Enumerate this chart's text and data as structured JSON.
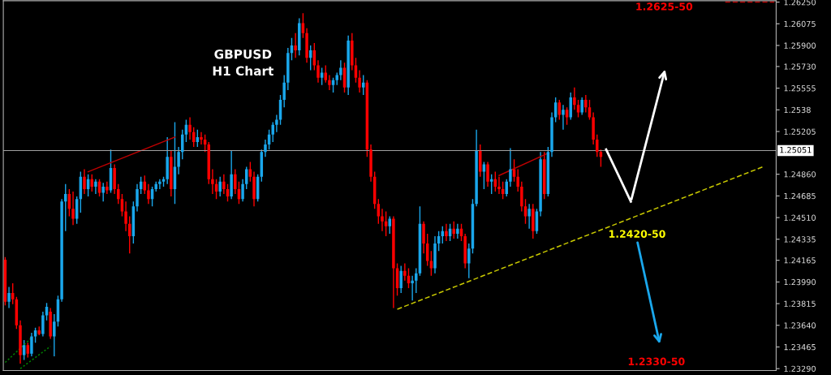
{
  "chart_data": {
    "type": "candlestick",
    "title": "GBPUSD\nH1 Chart",
    "categories": [
      null,
      null,
      null,
      null,
      null,
      null,
      null,
      null,
      null,
      null,
      null,
      null,
      null,
      null,
      null,
      null,
      null,
      null,
      null,
      null,
      null,
      null,
      null,
      null,
      null,
      null,
      null,
      null,
      null,
      null,
      null,
      null,
      null,
      null,
      null,
      null,
      null,
      null,
      null,
      null,
      null,
      null,
      null,
      null,
      null,
      null,
      null,
      null,
      null,
      null,
      null,
      null,
      null,
      null,
      null,
      null,
      null,
      null,
      null,
      null,
      null,
      null,
      null,
      null,
      null,
      null,
      null,
      null,
      null,
      null,
      null,
      null,
      null,
      null,
      null,
      null,
      null,
      null,
      null,
      null,
      null,
      null,
      null,
      null,
      null,
      null,
      null,
      null,
      null,
      null,
      null,
      null,
      null,
      null,
      null,
      null,
      null,
      null,
      null,
      null,
      null,
      null,
      null,
      null,
      null,
      null,
      null,
      null,
      null,
      null,
      null,
      null,
      null,
      null,
      null,
      null,
      null,
      null,
      null,
      null,
      null,
      null,
      null,
      null,
      null,
      null,
      null,
      null,
      null,
      null,
      null,
      null,
      null,
      null,
      null,
      null,
      null,
      null,
      null,
      null,
      null,
      null,
      null,
      null,
      null,
      null,
      null,
      null,
      null,
      null,
      null,
      null,
      null,
      null,
      null,
      null,
      null,
      null,
      null,
      null,
      null,
      null,
      null,
      null,
      null,
      null,
      null,
      null,
      null,
      null,
      null,
      null,
      null,
      null,
      null,
      null,
      null,
      null,
      null,
      null,
      null,
      null,
      null,
      null,
      null,
      null,
      null,
      null,
      null,
      null,
      null,
      null,
      null,
      null,
      null,
      null,
      null,
      null,
      null,
      null,
      null,
      null,
      null,
      null,
      null
    ],
    "ohlc": [
      [
        1.2417,
        1.2419,
        1.238,
        1.2383
      ],
      [
        1.2383,
        1.2395,
        1.2378,
        1.239
      ],
      [
        1.239,
        1.2398,
        1.2381,
        1.2385
      ],
      [
        1.2385,
        1.2387,
        1.2361,
        1.2364
      ],
      [
        1.2364,
        1.2368,
        1.2333,
        1.234
      ],
      [
        1.234,
        1.2352,
        1.2336,
        1.2348
      ],
      [
        1.2348,
        1.235,
        1.2338,
        1.2341
      ],
      [
        1.2341,
        1.2358,
        1.2339,
        1.2355
      ],
      [
        1.2355,
        1.2362,
        1.235,
        1.236
      ],
      [
        1.236,
        1.2363,
        1.2356,
        1.2357
      ],
      [
        1.2357,
        1.2375,
        1.2355,
        1.2372
      ],
      [
        1.2372,
        1.2382,
        1.2368,
        1.2379
      ],
      [
        1.2375,
        1.2378,
        1.2353,
        1.2355
      ],
      [
        1.2355,
        1.2373,
        1.2339,
        1.2367
      ],
      [
        1.2367,
        1.2388,
        1.2363,
        1.2385
      ],
      [
        1.2385,
        1.2466,
        1.2383,
        1.2464
      ],
      [
        1.2464,
        1.2478,
        1.244,
        1.247
      ],
      [
        1.247,
        1.2474,
        1.2452,
        1.2458
      ],
      [
        1.2458,
        1.2472,
        1.2445,
        1.245
      ],
      [
        1.245,
        1.2468,
        1.2446,
        1.2466
      ],
      [
        1.2466,
        1.2488,
        1.2455,
        1.2484
      ],
      [
        1.2484,
        1.249,
        1.247,
        1.2474
      ],
      [
        1.2474,
        1.2486,
        1.2468,
        1.2482
      ],
      [
        1.2482,
        1.2486,
        1.2472,
        1.2476
      ],
      [
        1.2476,
        1.2482,
        1.247,
        1.248
      ],
      [
        1.248,
        1.2482,
        1.2468,
        1.2471
      ],
      [
        1.2471,
        1.2479,
        1.2464,
        1.2476
      ],
      [
        1.2476,
        1.248,
        1.247,
        1.2473
      ],
      [
        1.2473,
        1.2506,
        1.2471,
        1.2491
      ],
      [
        1.2491,
        1.2494,
        1.247,
        1.2474
      ],
      [
        1.2474,
        1.2478,
        1.2462,
        1.2466
      ],
      [
        1.2466,
        1.247,
        1.2452,
        1.2456
      ],
      [
        1.2456,
        1.2464,
        1.244,
        1.2446
      ],
      [
        1.2446,
        1.2452,
        1.2422,
        1.2436
      ],
      [
        1.2436,
        1.2464,
        1.243,
        1.246
      ],
      [
        1.246,
        1.2478,
        1.2456,
        1.2474
      ],
      [
        1.2474,
        1.2484,
        1.247,
        1.248
      ],
      [
        1.248,
        1.2485,
        1.247,
        1.2473
      ],
      [
        1.2473,
        1.2478,
        1.2462,
        1.2466
      ],
      [
        1.2466,
        1.2476,
        1.246,
        1.2474
      ],
      [
        1.2474,
        1.248,
        1.2472,
        1.2478
      ],
      [
        1.2478,
        1.2482,
        1.2474,
        1.248
      ],
      [
        1.248,
        1.2484,
        1.2476,
        1.2482
      ],
      [
        1.2482,
        1.2516,
        1.2478,
        1.25
      ],
      [
        1.25,
        1.2505,
        1.2468,
        1.2474
      ],
      [
        1.2474,
        1.2528,
        1.2462,
        1.2492
      ],
      [
        1.2492,
        1.2508,
        1.2486,
        1.2504
      ],
      [
        1.2504,
        1.2522,
        1.2498,
        1.2518
      ],
      [
        1.2518,
        1.253,
        1.2512,
        1.2526
      ],
      [
        1.2526,
        1.2532,
        1.2514,
        1.252
      ],
      [
        1.252,
        1.2524,
        1.2508,
        1.2512
      ],
      [
        1.2512,
        1.2522,
        1.2508,
        1.2516
      ],
      [
        1.2516,
        1.252,
        1.251,
        1.2514
      ],
      [
        1.2514,
        1.2518,
        1.2504,
        1.251
      ],
      [
        1.251,
        1.2512,
        1.2478,
        1.2482
      ],
      [
        1.2482,
        1.249,
        1.247,
        1.2478
      ],
      [
        1.2478,
        1.2482,
        1.2466,
        1.2472
      ],
      [
        1.2472,
        1.2484,
        1.2468,
        1.248
      ],
      [
        1.248,
        1.2486,
        1.247,
        1.2474
      ],
      [
        1.2474,
        1.2478,
        1.2464,
        1.2468
      ],
      [
        1.2468,
        1.2505,
        1.2466,
        1.2486
      ],
      [
        1.2486,
        1.249,
        1.247,
        1.2474
      ],
      [
        1.2474,
        1.248,
        1.2462,
        1.2466
      ],
      [
        1.2466,
        1.2482,
        1.2464,
        1.2478
      ],
      [
        1.2478,
        1.2492,
        1.2474,
        1.249
      ],
      [
        1.249,
        1.2496,
        1.248,
        1.2484
      ],
      [
        1.2484,
        1.2488,
        1.246,
        1.2466
      ],
      [
        1.2466,
        1.2486,
        1.2464,
        1.2484
      ],
      [
        1.2484,
        1.2506,
        1.248,
        1.2504
      ],
      [
        1.2504,
        1.2514,
        1.25,
        1.251
      ],
      [
        1.251,
        1.2522,
        1.2506,
        1.2518
      ],
      [
        1.2518,
        1.2528,
        1.2512,
        1.2526
      ],
      [
        1.2526,
        1.2534,
        1.252,
        1.253
      ],
      [
        1.253,
        1.255,
        1.2526,
        1.2546
      ],
      [
        1.2546,
        1.2566,
        1.254,
        1.256
      ],
      [
        1.256,
        1.2588,
        1.2554,
        1.2584
      ],
      [
        1.2584,
        1.2596,
        1.2578,
        1.259
      ],
      [
        1.259,
        1.26,
        1.258,
        1.2586
      ],
      [
        1.2586,
        1.2612,
        1.2582,
        1.2608
      ],
      [
        1.2608,
        1.2616,
        1.2596,
        1.26
      ],
      [
        1.26,
        1.2604,
        1.2576,
        1.258
      ],
      [
        1.258,
        1.259,
        1.257,
        1.2586
      ],
      [
        1.2586,
        1.2592,
        1.257,
        1.2574
      ],
      [
        1.2574,
        1.2578,
        1.256,
        1.2564
      ],
      [
        1.2564,
        1.2572,
        1.2558,
        1.2568
      ],
      [
        1.2568,
        1.2574,
        1.256,
        1.2562
      ],
      [
        1.2562,
        1.2566,
        1.2554,
        1.2558
      ],
      [
        1.2558,
        1.2564,
        1.2552,
        1.2562
      ],
      [
        1.2562,
        1.2568,
        1.2558,
        1.2566
      ],
      [
        1.2566,
        1.2578,
        1.2562,
        1.2572
      ],
      [
        1.2572,
        1.2576,
        1.2552,
        1.2556
      ],
      [
        1.2556,
        1.2598,
        1.255,
        1.2594
      ],
      [
        1.2594,
        1.26,
        1.257,
        1.2574
      ],
      [
        1.2574,
        1.258,
        1.256,
        1.2564
      ],
      [
        1.2564,
        1.257,
        1.2552,
        1.2556
      ],
      [
        1.2556,
        1.2566,
        1.255,
        1.256
      ],
      [
        1.256,
        1.2562,
        1.25,
        1.2506
      ],
      [
        1.2506,
        1.251,
        1.248,
        1.2484
      ],
      [
        1.2484,
        1.2488,
        1.2458,
        1.2462
      ],
      [
        1.2462,
        1.2466,
        1.2446,
        1.2452
      ],
      [
        1.2452,
        1.2458,
        1.244,
        1.2448
      ],
      [
        1.2448,
        1.2456,
        1.2436,
        1.2444
      ],
      [
        1.2444,
        1.2452,
        1.2438,
        1.245
      ],
      [
        1.245,
        1.2452,
        1.2378,
        1.241
      ],
      [
        1.241,
        1.2414,
        1.2388,
        1.2394
      ],
      [
        1.2394,
        1.2412,
        1.239,
        1.2408
      ],
      [
        1.2408,
        1.2414,
        1.24,
        1.2404
      ],
      [
        1.2404,
        1.241,
        1.2394,
        1.2398
      ],
      [
        1.2398,
        1.2404,
        1.2384,
        1.24
      ],
      [
        1.24,
        1.241,
        1.239,
        1.2406
      ],
      [
        1.2406,
        1.246,
        1.2404,
        1.2446
      ],
      [
        1.2446,
        1.2448,
        1.2422,
        1.243
      ],
      [
        1.243,
        1.2438,
        1.2412,
        1.2416
      ],
      [
        1.2416,
        1.2424,
        1.2404,
        1.241
      ],
      [
        1.241,
        1.2436,
        1.2406,
        1.243
      ],
      [
        1.243,
        1.244,
        1.2424,
        1.2436
      ],
      [
        1.2436,
        1.2444,
        1.243,
        1.244
      ],
      [
        1.244,
        1.2446,
        1.2432,
        1.2436
      ],
      [
        1.2436,
        1.2446,
        1.2432,
        1.2442
      ],
      [
        1.2442,
        1.2448,
        1.2434,
        1.2438
      ],
      [
        1.2438,
        1.2446,
        1.2434,
        1.2442
      ],
      [
        1.2442,
        1.2446,
        1.2432,
        1.2436
      ],
      [
        1.2436,
        1.2438,
        1.241,
        1.2414
      ],
      [
        1.2414,
        1.243,
        1.2402,
        1.2426
      ],
      [
        1.2426,
        1.2466,
        1.2422,
        1.2462
      ],
      [
        1.2462,
        1.2522,
        1.246,
        1.2505
      ],
      [
        1.2505,
        1.251,
        1.2484,
        1.2488
      ],
      [
        1.2488,
        1.2496,
        1.2474,
        1.2494
      ],
      [
        1.2494,
        1.2496,
        1.2476,
        1.248
      ],
      [
        1.248,
        1.2486,
        1.247,
        1.2482
      ],
      [
        1.2482,
        1.2488,
        1.2472,
        1.2476
      ],
      [
        1.2476,
        1.2484,
        1.247,
        1.2474
      ],
      [
        1.2474,
        1.248,
        1.2466,
        1.247
      ],
      [
        1.247,
        1.2482,
        1.2468,
        1.248
      ],
      [
        1.248,
        1.2507,
        1.2476,
        1.249
      ],
      [
        1.249,
        1.2498,
        1.248,
        1.2484
      ],
      [
        1.2484,
        1.249,
        1.2472,
        1.2476
      ],
      [
        1.2476,
        1.248,
        1.2456,
        1.246
      ],
      [
        1.246,
        1.2466,
        1.2446,
        1.2452
      ],
      [
        1.2452,
        1.2462,
        1.2442,
        1.2458
      ],
      [
        1.2458,
        1.2462,
        1.2434,
        1.244
      ],
      [
        1.244,
        1.2458,
        1.2438,
        1.2456
      ],
      [
        1.2456,
        1.2504,
        1.2452,
        1.2498
      ],
      [
        1.2498,
        1.2504,
        1.2466,
        1.247
      ],
      [
        1.247,
        1.2508,
        1.2468,
        1.2504
      ],
      [
        1.2504,
        1.2536,
        1.25,
        1.2532
      ],
      [
        1.2532,
        1.2548,
        1.2528,
        1.2544
      ],
      [
        1.2544,
        1.2546,
        1.253,
        1.2534
      ],
      [
        1.2534,
        1.2542,
        1.2522,
        1.2538
      ],
      [
        1.2538,
        1.254,
        1.2526,
        1.2532
      ],
      [
        1.2532,
        1.2552,
        1.253,
        1.2548
      ],
      [
        1.2548,
        1.2556,
        1.2538,
        1.2542
      ],
      [
        1.2542,
        1.2546,
        1.2532,
        1.2536
      ],
      [
        1.2536,
        1.2548,
        1.2534,
        1.2546
      ],
      [
        1.2546,
        1.255,
        1.2536,
        1.254
      ],
      [
        1.254,
        1.2546,
        1.253,
        1.2532
      ],
      [
        1.2532,
        1.2536,
        1.251,
        1.2514
      ],
      [
        1.2514,
        1.2518,
        1.25,
        1.2504
      ],
      [
        1.2504,
        1.2506,
        1.2492,
        1.25
      ],
      null,
      null,
      null,
      null,
      null,
      null,
      null,
      null,
      null,
      null,
      null,
      null,
      null,
      null,
      null,
      null,
      null,
      null,
      null,
      null,
      null,
      null,
      null,
      null,
      null,
      null,
      null,
      null,
      null,
      null,
      null,
      null,
      null,
      null,
      null,
      null,
      null,
      null,
      null,
      null,
      null,
      null,
      null,
      null,
      null,
      null
    ],
    "series": [
      {
        "type": "line",
        "color": "#c8c800",
        "line_style": "dashed",
        "values": [
          null,
          null,
          null,
          null,
          null,
          null,
          null,
          null,
          null,
          null,
          null,
          null,
          null,
          null,
          null,
          null,
          null,
          null,
          null,
          null,
          null,
          null,
          null,
          null,
          null,
          null,
          null,
          null,
          null,
          null,
          null,
          null,
          null,
          null,
          null,
          null,
          null,
          null,
          null,
          null,
          null,
          null,
          null,
          null,
          null,
          null,
          null,
          null,
          null,
          null,
          null,
          null,
          null,
          null,
          null,
          null,
          null,
          null,
          null,
          null,
          null,
          null,
          null,
          null,
          null,
          null,
          null,
          null,
          null,
          null,
          null,
          null,
          null,
          null,
          null,
          null,
          null,
          null,
          null,
          null,
          null,
          null,
          null,
          null,
          null,
          null,
          null,
          null,
          null,
          null,
          null,
          null,
          null,
          null,
          null,
          null,
          null,
          null,
          null,
          null,
          null,
          null,
          null,
          null,
          1.2377,
          null,
          null,
          null,
          null,
          null,
          null,
          null,
          null,
          null,
          null,
          null,
          null,
          null,
          null,
          null,
          null,
          null,
          null,
          null,
          null,
          null,
          null,
          null,
          null,
          null,
          null,
          null,
          null,
          null,
          null,
          null,
          null,
          null,
          null,
          null,
          null,
          null,
          null,
          null,
          null,
          null,
          null,
          null,
          null,
          null,
          null,
          null,
          null,
          null,
          null,
          null,
          null,
          null,
          null,
          null,
          null,
          null,
          null,
          null,
          null,
          null,
          null,
          null,
          null,
          null,
          null,
          null,
          null,
          null,
          null,
          null,
          null,
          null,
          null,
          null,
          null,
          null,
          null,
          null,
          null,
          null,
          null,
          null,
          null,
          null,
          null,
          null,
          null,
          null,
          null,
          null,
          null,
          null,
          null,
          null,
          null,
          1.2492,
          null,
          null,
          null
        ]
      },
      {
        "type": "line",
        "color": "#c00000",
        "line_style": "solid",
        "values": [
          null,
          null,
          null,
          null,
          null,
          null,
          null,
          null,
          null,
          null,
          null,
          null,
          null,
          null,
          null,
          null,
          null,
          null,
          null,
          null,
          null,
          null,
          1.2488,
          null,
          null,
          null,
          null,
          null,
          null,
          null,
          null,
          null,
          null,
          null,
          null,
          null,
          null,
          null,
          null,
          null,
          null,
          null,
          null,
          null,
          null,
          1.2516,
          null,
          null,
          null,
          null,
          null,
          null,
          null,
          null,
          null,
          null,
          null,
          null,
          null,
          null,
          null,
          null,
          null,
          null,
          null,
          null,
          null,
          null,
          null,
          null,
          null,
          null,
          null,
          null,
          null,
          null,
          null,
          null,
          null,
          null,
          null,
          null,
          null,
          null,
          null,
          null,
          null,
          null,
          null,
          null,
          null,
          null,
          null,
          null,
          null,
          null,
          null,
          null,
          null,
          null,
          null,
          null,
          null,
          null,
          null,
          null,
          null,
          null,
          null,
          null,
          null,
          null,
          null,
          null,
          null,
          null,
          null,
          null,
          null,
          null,
          null,
          null,
          null,
          null,
          null,
          null,
          null,
          null,
          null,
          null,
          null,
          null,
          null,
          null,
          null,
          null,
          null,
          null,
          null,
          null,
          null,
          null,
          null,
          null,
          null,
          null,
          null,
          null,
          null,
          null,
          null,
          null,
          null,
          null,
          null,
          null,
          null,
          null,
          null,
          null,
          null,
          null,
          null,
          null,
          null,
          null,
          null,
          null,
          null,
          null,
          null,
          null,
          null,
          null,
          null,
          null,
          null,
          null,
          null,
          null,
          null,
          null,
          null,
          null,
          null,
          null,
          null,
          null,
          null,
          null,
          null,
          null,
          null,
          null,
          null,
          null,
          null,
          null,
          null,
          null,
          null,
          null,
          null,
          null,
          null
        ]
      },
      {
        "type": "line",
        "color": "#c00000",
        "line_style": "solid",
        "values": [
          null,
          null,
          null,
          null,
          null,
          null,
          null,
          null,
          null,
          null,
          null,
          null,
          null,
          null,
          null,
          null,
          null,
          null,
          null,
          null,
          null,
          null,
          null,
          null,
          null,
          null,
          null,
          null,
          null,
          null,
          null,
          null,
          null,
          null,
          null,
          null,
          null,
          null,
          null,
          null,
          null,
          null,
          null,
          null,
          null,
          null,
          null,
          null,
          null,
          null,
          null,
          null,
          null,
          null,
          null,
          null,
          null,
          null,
          null,
          null,
          null,
          null,
          null,
          null,
          null,
          null,
          null,
          null,
          null,
          null,
          null,
          null,
          null,
          null,
          null,
          null,
          null,
          null,
          null,
          null,
          null,
          null,
          null,
          null,
          null,
          null,
          null,
          null,
          null,
          null,
          null,
          null,
          null,
          null,
          null,
          null,
          null,
          null,
          null,
          null,
          null,
          null,
          null,
          null,
          null,
          null,
          null,
          null,
          null,
          null,
          null,
          null,
          null,
          null,
          null,
          null,
          null,
          null,
          null,
          null,
          null,
          null,
          null,
          null,
          null,
          null,
          null,
          null,
          null,
          null,
          null,
          1.2485,
          null,
          null,
          null,
          null,
          null,
          null,
          null,
          null,
          null,
          null,
          null,
          null,
          1.2503,
          null,
          null,
          null,
          null,
          null,
          null,
          null,
          null,
          null,
          null,
          null,
          null,
          null,
          null,
          null,
          null,
          null,
          null,
          null,
          null,
          null,
          null,
          null,
          null,
          null,
          null,
          null,
          null,
          null,
          null,
          null,
          null,
          null,
          null,
          null,
          null,
          null,
          null,
          null,
          null,
          null,
          null,
          null,
          null,
          null,
          null,
          null,
          null,
          null,
          null,
          null,
          null,
          null,
          null,
          null,
          null,
          null,
          null,
          null,
          null
        ]
      },
      {
        "type": "line",
        "color": "#008000",
        "line_style": "dotted",
        "values": [
          1.2334,
          null,
          null,
          null,
          null,
          null,
          null,
          1.2354,
          null,
          null,
          null,
          null,
          null,
          null,
          null,
          null,
          null,
          null,
          null,
          null,
          null,
          null,
          null,
          null,
          null,
          null,
          null,
          null,
          null,
          null,
          null,
          null,
          null,
          null,
          null,
          null,
          null,
          null,
          null,
          null,
          null,
          null,
          null,
          null,
          null,
          null,
          null,
          null,
          null,
          null,
          null,
          null,
          null,
          null,
          null,
          null,
          null,
          null,
          null,
          null,
          null,
          null,
          null,
          null,
          null,
          null,
          null,
          null,
          null,
          null,
          null,
          null,
          null,
          null,
          null,
          null,
          null,
          null,
          null,
          null,
          null,
          null,
          null,
          null,
          null,
          null,
          null,
          null,
          null,
          null,
          null,
          null,
          null,
          null,
          null,
          null,
          null,
          null,
          null,
          null,
          null,
          null,
          null,
          null,
          null,
          null,
          null,
          null,
          null,
          null,
          null,
          null,
          null,
          null,
          null,
          null,
          null,
          null,
          null,
          null,
          null,
          null,
          null,
          null,
          null,
          null,
          null,
          null,
          null,
          null,
          null,
          null,
          null,
          null,
          null,
          null,
          null,
          null,
          null,
          null,
          null,
          null,
          null,
          null,
          null,
          null,
          null,
          null,
          null,
          null,
          null,
          null,
          null,
          null,
          null,
          null,
          null,
          null,
          null,
          null,
          null,
          null,
          null,
          null,
          null,
          null,
          null,
          null,
          null,
          null,
          null,
          null,
          null,
          null,
          null,
          null,
          null,
          null,
          null,
          null,
          null,
          null,
          null,
          null,
          null,
          null,
          null,
          null,
          null,
          null,
          null,
          null,
          null,
          null,
          null,
          null,
          null,
          null,
          null,
          null,
          null,
          null,
          null,
          null,
          null
        ]
      },
      {
        "type": "line",
        "color": "#008000",
        "line_style": "dotted",
        "values": [
          null,
          null,
          null,
          null,
          1.2329,
          null,
          null,
          null,
          null,
          null,
          null,
          null,
          1.2347,
          null,
          null,
          null,
          null,
          null,
          null,
          null,
          null,
          null,
          null,
          null,
          null,
          null,
          null,
          null,
          null,
          null,
          null,
          null,
          null,
          null,
          null,
          null,
          null,
          null,
          null,
          null,
          null,
          null,
          null,
          null,
          null,
          null,
          null,
          null,
          null,
          null,
          null,
          null,
          null,
          null,
          null,
          null,
          null,
          null,
          null,
          null,
          null,
          null,
          null,
          null,
          null,
          null,
          null,
          null,
          null,
          null,
          null,
          null,
          null,
          null,
          null,
          null,
          null,
          null,
          null,
          null,
          null,
          null,
          null,
          null,
          null,
          null,
          null,
          null,
          null,
          null,
          null,
          null,
          null,
          null,
          null,
          null,
          null,
          null,
          null,
          null,
          null,
          null,
          null,
          null,
          null,
          null,
          null,
          null,
          null,
          null,
          null,
          null,
          null,
          null,
          null,
          null,
          null,
          null,
          null,
          null,
          null,
          null,
          null,
          null,
          null,
          null,
          null,
          null,
          null,
          null,
          null,
          null,
          null,
          null,
          null,
          null,
          null,
          null,
          null,
          null,
          null,
          null,
          null,
          null,
          null,
          null,
          null,
          null,
          null,
          null,
          null,
          null,
          null,
          null,
          null,
          null,
          null,
          null,
          null,
          null,
          null,
          null,
          null,
          null,
          null,
          null,
          null,
          null,
          null,
          null,
          null,
          null,
          null,
          null,
          null,
          null,
          null,
          null,
          null,
          null,
          null,
          null,
          null,
          null,
          null,
          null,
          null,
          null,
          null,
          null,
          null,
          null,
          null,
          null,
          null,
          null,
          null,
          null,
          null,
          null,
          null,
          null,
          null,
          null,
          null
        ]
      },
      {
        "type": "line",
        "color": "#c00000",
        "line_style": "dashed",
        "values": [
          null,
          null,
          null,
          null,
          null,
          null,
          null,
          null,
          null,
          null,
          null,
          null,
          null,
          null,
          null,
          null,
          null,
          null,
          null,
          null,
          null,
          null,
          null,
          null,
          null,
          null,
          null,
          null,
          null,
          null,
          null,
          null,
          null,
          null,
          null,
          null,
          null,
          null,
          null,
          null,
          null,
          null,
          null,
          null,
          null,
          null,
          null,
          null,
          null,
          null,
          null,
          null,
          null,
          null,
          null,
          null,
          null,
          null,
          null,
          null,
          null,
          null,
          null,
          null,
          null,
          null,
          null,
          null,
          null,
          null,
          null,
          null,
          null,
          null,
          null,
          null,
          null,
          null,
          null,
          null,
          null,
          null,
          null,
          null,
          null,
          null,
          null,
          null,
          null,
          null,
          null,
          null,
          null,
          null,
          null,
          null,
          null,
          null,
          null,
          null,
          null,
          null,
          null,
          null,
          null,
          null,
          null,
          null,
          null,
          null,
          null,
          null,
          null,
          null,
          null,
          null,
          null,
          null,
          null,
          null,
          null,
          null,
          null,
          null,
          null,
          null,
          null,
          null,
          null,
          null,
          null,
          null,
          null,
          null,
          null,
          null,
          null,
          null,
          null,
          null,
          null,
          null,
          null,
          null,
          null,
          null,
          null,
          null,
          null,
          null,
          null,
          null,
          null,
          null,
          null,
          null,
          null,
          null,
          null,
          null,
          null,
          null,
          null,
          null,
          null,
          null,
          null,
          null,
          null,
          null,
          null,
          null,
          null,
          null,
          null,
          null,
          null,
          null,
          null,
          null,
          null,
          null,
          null,
          null,
          null,
          null,
          null,
          null,
          null,
          null,
          null,
          1.2625,
          null,
          null,
          null,
          null,
          null,
          null,
          null,
          null,
          null,
          null,
          null,
          null,
          1.2625
        ]
      }
    ],
    "ref_lines": [
      {
        "axis": "y",
        "value": 1.25051,
        "label": "1.25051",
        "color": "#a0a0a0"
      }
    ],
    "annotations": [
      "1.2625-50",
      "1.2420-50",
      "1.2330-50"
    ],
    "ylim": [
      1.23275,
      1.26261
    ],
    "yticks": [
      {
        "value": 1.2625,
        "label": "1.26250"
      },
      1.26075,
      {
        "value": 1.259,
        "label": "1.25900"
      },
      {
        "value": 1.2573,
        "label": "1.25730"
      },
      1.25555,
      1.2538,
      1.25205,
      {
        "value": 1.2486,
        "label": "1.24860"
      },
      1.24685,
      {
        "value": 1.2451,
        "label": "1.24510"
      },
      1.24335,
      1.24165,
      {
        "value": 1.2399,
        "label": "1.23990"
      },
      1.23815,
      {
        "value": 1.2364,
        "label": "1.23640"
      },
      1.23465,
      {
        "value": 1.2329,
        "label": "1.23290"
      }
    ],
    "grid": false,
    "legend": false
  }
}
